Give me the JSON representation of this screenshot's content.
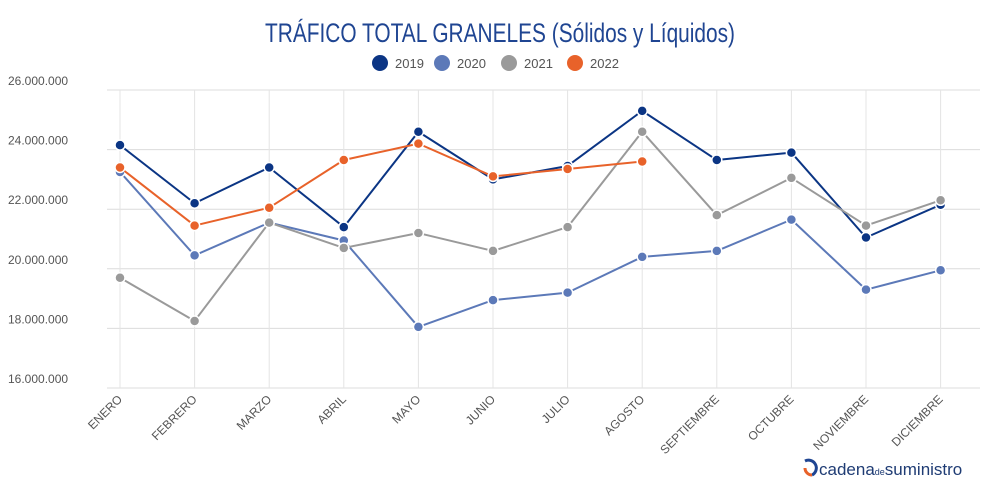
{
  "chart_data": {
    "type": "line",
    "title": "TRÁFICO TOTAL GRANELES (Sólidos y Líquidos)",
    "xlabel": "",
    "ylabel": "",
    "categories": [
      "ENERO",
      "FEBRERO",
      "MARZO",
      "ABRIL",
      "MAYO",
      "JUNIO",
      "JULIO",
      "AGOSTO",
      "SEPTIEMBRE",
      "OCTUBRE",
      "NOVIEMBRE",
      "DICIEMBRE"
    ],
    "ylim": [
      16000000,
      26000000
    ],
    "yticks": [
      {
        "value": 16000000,
        "label": "16.000.000"
      },
      {
        "value": 18000000,
        "label": "18.000.000"
      },
      {
        "value": 20000000,
        "label": "20.000.000"
      },
      {
        "value": 22000000,
        "label": "22.000.000"
      },
      {
        "value": 24000000,
        "label": "24.000.000"
      },
      {
        "value": 26000000,
        "label": "26.000.000"
      }
    ],
    "grid": true,
    "legend_position": "top-center",
    "series": [
      {
        "name": "2019",
        "color": "#0b3584",
        "values": [
          24150000,
          22200000,
          23400000,
          21400000,
          24600000,
          23000000,
          23450000,
          25300000,
          23650000,
          23900000,
          21050000,
          22150000
        ]
      },
      {
        "name": "2020",
        "color": "#5c79b8",
        "values": [
          23250000,
          20450000,
          21550000,
          20950000,
          18050000,
          18950000,
          19200000,
          20400000,
          20600000,
          21650000,
          19300000,
          19950000
        ]
      },
      {
        "name": "2021",
        "color": "#9a9a9a",
        "values": [
          19700000,
          18250000,
          21550000,
          20700000,
          21200000,
          20600000,
          21400000,
          24600000,
          21800000,
          23050000,
          21450000,
          22300000
        ]
      },
      {
        "name": "2022",
        "color": "#e8622a",
        "values": [
          23400000,
          21450000,
          22050000,
          23650000,
          24200000,
          23100000,
          23350000,
          23600000,
          null,
          null,
          null,
          null
        ]
      }
    ]
  },
  "brand": {
    "part1": "cadena",
    "part2": "de",
    "part3": "suministro",
    "icon": "cadena-suministro-logo-icon",
    "colors": {
      "text": "#1f3c74",
      "accent1": "#1f4592",
      "accent2": "#e8622a"
    }
  }
}
